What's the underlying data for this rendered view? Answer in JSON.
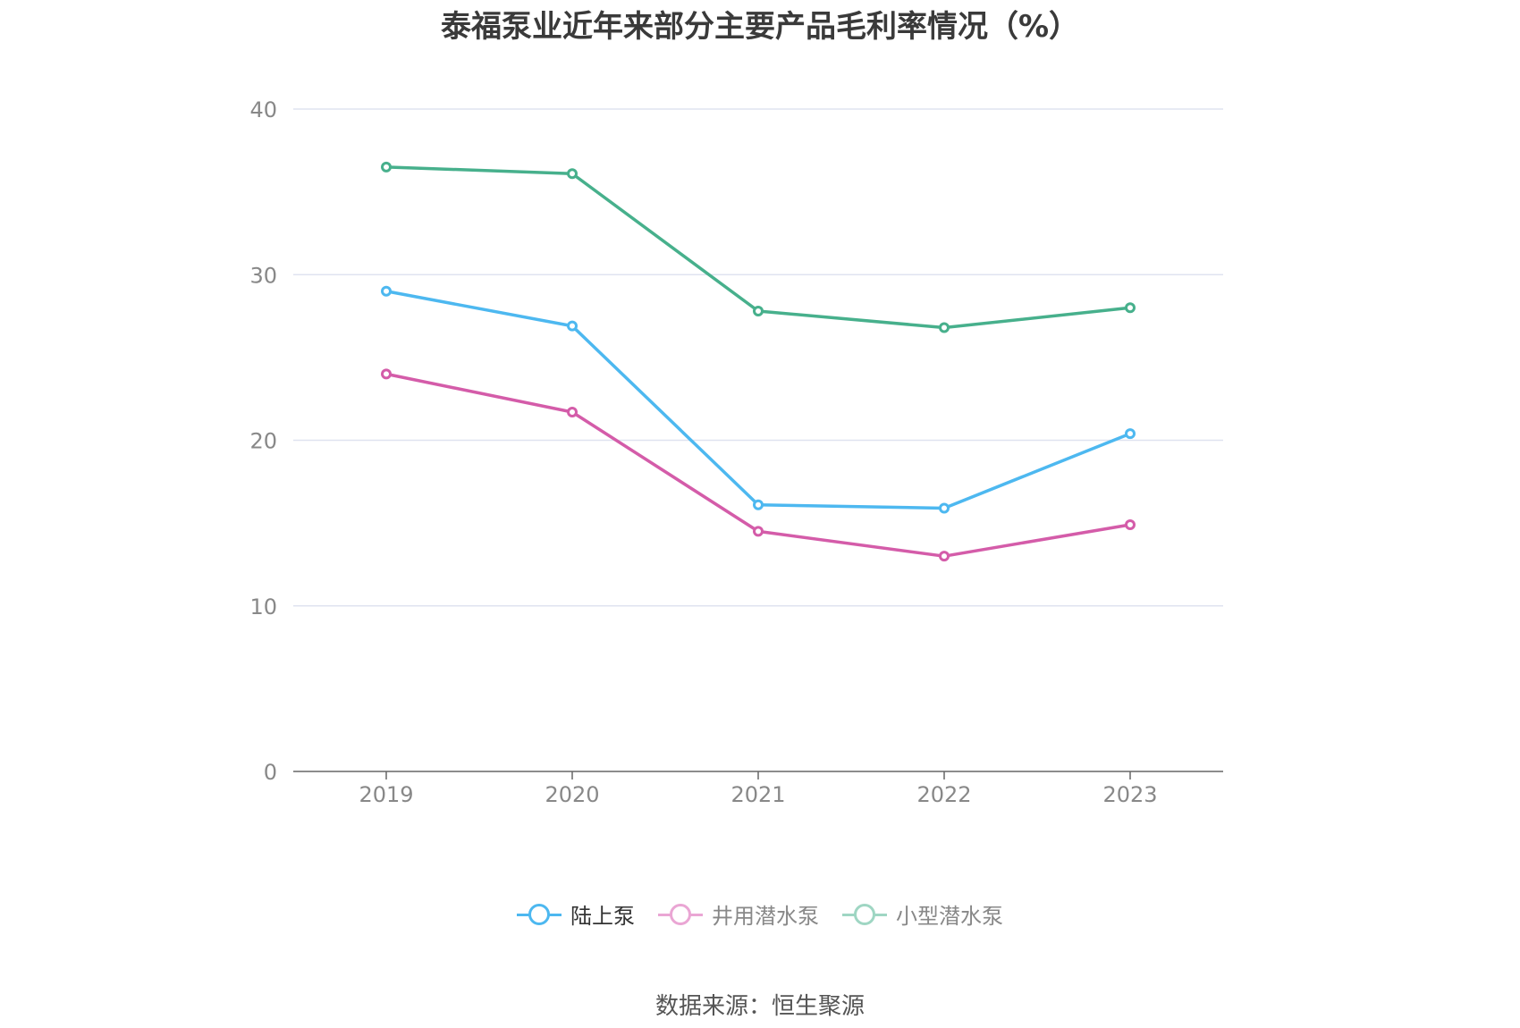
{
  "chart_data": {
    "type": "line",
    "title": "泰福泵业近年来部分主要产品毛利率情况（%）",
    "categories": [
      "2019",
      "2020",
      "2021",
      "2022",
      "2023"
    ],
    "ylim": [
      0,
      40
    ],
    "yticks": [
      "0",
      "10",
      "20",
      "30",
      "40"
    ],
    "grid": true,
    "legend_position": "bottom-center",
    "series": [
      {
        "name": "陆上泵",
        "color": "#4db8f0",
        "values": [
          29.0,
          26.9,
          16.1,
          15.9,
          20.4
        ]
      },
      {
        "name": "井用潜水泵",
        "color": "#d45ca9",
        "values": [
          24.0,
          21.7,
          14.5,
          13.0,
          14.9
        ]
      },
      {
        "name": "小型潜水泵",
        "color": "#47b08c",
        "values": [
          36.5,
          36.1,
          27.8,
          26.8,
          28.0
        ]
      }
    ]
  },
  "legend": {
    "colors": [
      "#4db8f0",
      "#eaa6d4",
      "#9fd6c3"
    ],
    "text_colors": [
      "#333333",
      "#888888",
      "#888888"
    ]
  },
  "source": "数据来源：恒生聚源"
}
